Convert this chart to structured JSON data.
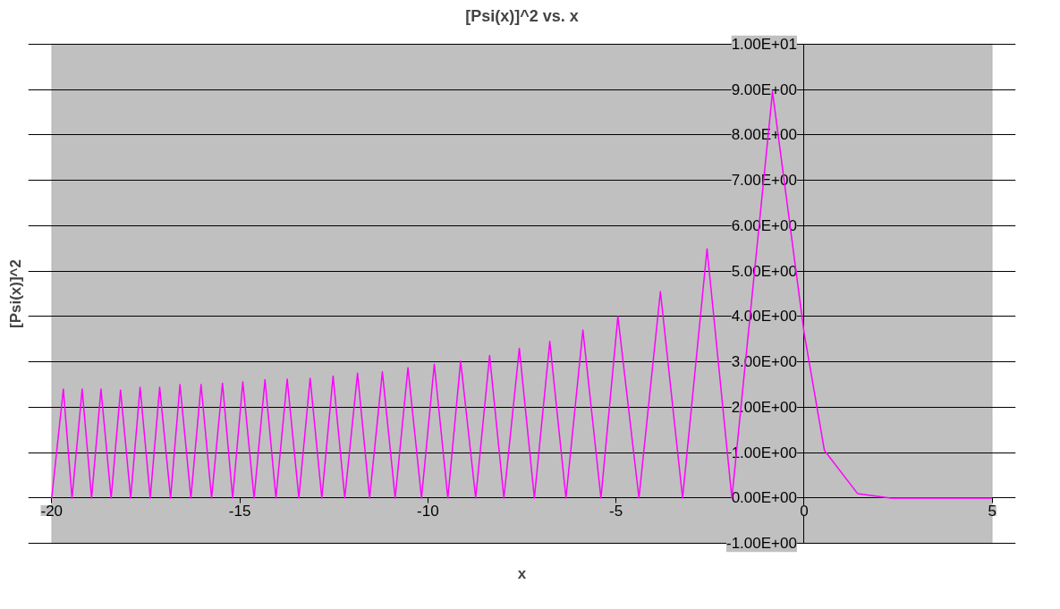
{
  "chart_data": {
    "type": "line",
    "title": "[Psi(x)]^2 vs. x",
    "xlabel": "x",
    "ylabel": "[Psi(x)]^2",
    "xlim": [
      -20,
      5
    ],
    "xticks": [
      -20,
      -15,
      -10,
      -5,
      0,
      5
    ],
    "ylim": [
      -1,
      10
    ],
    "yticks": [
      {
        "value": -1,
        "label": "-1.00E+00"
      },
      {
        "value": 0,
        "label": "0.00E+00"
      },
      {
        "value": 1,
        "label": "1.00E+00"
      },
      {
        "value": 2,
        "label": "2.00E+00"
      },
      {
        "value": 3,
        "label": "3.00E+00"
      },
      {
        "value": 4,
        "label": "4.00E+00"
      },
      {
        "value": 5,
        "label": "5.00E+00"
      },
      {
        "value": 6,
        "label": "6.00E+00"
      },
      {
        "value": 7,
        "label": "7.00E+00"
      },
      {
        "value": 8,
        "label": "8.00E+00"
      },
      {
        "value": 9,
        "label": "9.00E+00"
      },
      {
        "value": 10,
        "label": "1.00E+01"
      }
    ],
    "grid": "y",
    "marker": "none",
    "line_style": "solid",
    "series": [
      {
        "color": "#ff00ff",
        "x": [
          -20,
          -19.69,
          -19.46,
          -19.19,
          -18.94,
          -18.69,
          -18.42,
          -18.17,
          -17.9,
          -17.65,
          -17.38,
          -17.13,
          -16.84,
          -16.59,
          -16.3,
          -16.03,
          -15.75,
          -15.46,
          -15.19,
          -14.92,
          -14.62,
          -14.33,
          -14.04,
          -13.74,
          -13.43,
          -13.13,
          -12.82,
          -12.52,
          -12.21,
          -11.87,
          -11.55,
          -11.21,
          -10.87,
          -10.53,
          -10.17,
          -9.83,
          -9.47,
          -9.13,
          -8.73,
          -8.36,
          -7.98,
          -7.57,
          -7.17,
          -6.76,
          -6.33,
          -5.88,
          -5.4,
          -4.95,
          -4.39,
          -3.82,
          -3.23,
          -2.58,
          -1.92,
          -0.84,
          0,
          0.54,
          1.42,
          2.3,
          5
        ],
        "values": [
          0,
          2.4,
          0,
          2.4,
          0,
          2.4,
          0,
          2.38,
          0,
          2.44,
          0,
          2.44,
          0,
          2.5,
          0,
          2.5,
          0,
          2.53,
          0,
          2.56,
          0,
          2.61,
          0,
          2.62,
          0,
          2.64,
          0,
          2.69,
          0,
          2.75,
          0,
          2.78,
          0,
          2.87,
          0,
          2.95,
          0,
          3.02,
          0,
          3.14,
          0,
          3.3,
          0,
          3.45,
          0,
          3.7,
          0,
          4.0,
          0,
          4.55,
          0,
          5.49,
          0,
          8.95,
          3.64,
          1.05,
          0.1,
          0,
          0
        ]
      }
    ]
  }
}
